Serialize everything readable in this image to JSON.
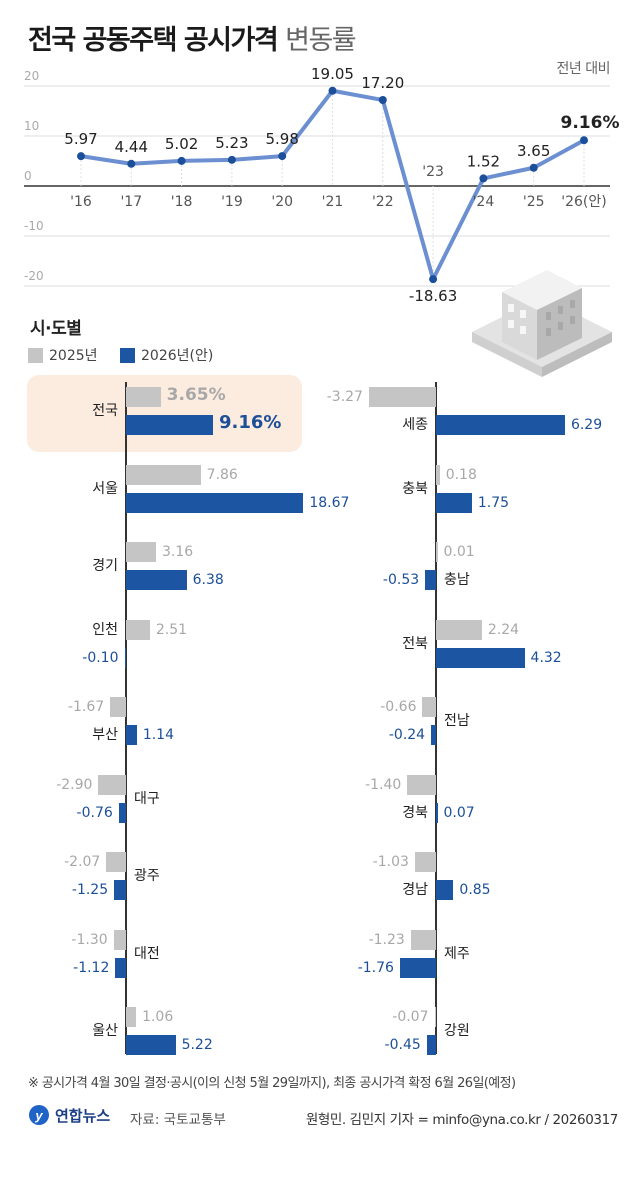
{
  "title": {
    "bold": "전국 공동주택 공시가격",
    "light": "변동률"
  },
  "chart_data": [
    {
      "type": "line",
      "unit_label": "전년 대비",
      "categories": [
        "'16",
        "'17",
        "'18",
        "'19",
        "'20",
        "'21",
        "'22",
        "'23",
        "'24",
        "'25",
        "'26(안)"
      ],
      "values": [
        5.97,
        4.44,
        5.02,
        5.23,
        5.98,
        19.05,
        17.2,
        -18.63,
        1.52,
        3.65,
        9.16
      ],
      "value_labels": [
        "5.97",
        "4.44",
        "5.02",
        "5.23",
        "5.98",
        "19.05",
        "17.20",
        "-18.63",
        "1.52",
        "3.65",
        "9.16%"
      ],
      "ylim": [
        -20,
        20
      ],
      "yticks": [
        "20",
        "10",
        "0",
        "-10",
        "-20"
      ],
      "grid": true,
      "colors": {
        "line": "#6b8fd1",
        "point": "#1b4f9a"
      }
    },
    {
      "type": "bar",
      "title": "시·도별",
      "orientation": "horizontal",
      "legend": [
        "2025년",
        "2026년(안)"
      ],
      "colors": {
        "2025": "#c5c5c5",
        "2026": "#1c56a3",
        "highlight": "#fcece0"
      },
      "panels": [
        {
          "categories": [
            "전국",
            "서울",
            "경기",
            "인천",
            "부산",
            "대구",
            "광주",
            "대전",
            "울산"
          ],
          "series": [
            {
              "name": "2025년",
              "values": [
                3.65,
                7.86,
                3.16,
                2.51,
                -1.67,
                -2.9,
                -2.07,
                -1.3,
                1.06
              ],
              "labels": [
                "3.65%",
                "7.86",
                "3.16",
                "2.51",
                "-1.67",
                "-2.90",
                "-2.07",
                "-1.30",
                "1.06"
              ]
            },
            {
              "name": "2026년(안)",
              "values": [
                9.16,
                18.67,
                6.38,
                -0.1,
                1.14,
                -0.76,
                -1.25,
                -1.12,
                5.22
              ],
              "labels": [
                "9.16%",
                "18.67",
                "6.38",
                "-0.10",
                "1.14",
                "-0.76",
                "-1.25",
                "-1.12",
                "5.22"
              ]
            }
          ]
        },
        {
          "categories": [
            "세종",
            "충북",
            "충남",
            "전북",
            "전남",
            "경북",
            "경남",
            "제주",
            "강원"
          ],
          "series": [
            {
              "name": "2025년",
              "values": [
                -3.27,
                0.18,
                0.01,
                2.24,
                -0.66,
                -1.4,
                -1.03,
                -1.23,
                -0.07
              ],
              "labels": [
                "-3.27",
                "0.18",
                "0.01",
                "2.24",
                "-0.66",
                "-1.40",
                "-1.03",
                "-1.23",
                "-0.07"
              ]
            },
            {
              "name": "2026년(안)",
              "values": [
                6.29,
                1.75,
                -0.53,
                4.32,
                -0.24,
                0.07,
                0.85,
                -1.76,
                -0.45
              ],
              "labels": [
                "6.29",
                "1.75",
                "-0.53",
                "4.32",
                "-0.24",
                "0.07",
                "0.85",
                "-1.76",
                "-0.45"
              ]
            }
          ]
        }
      ]
    }
  ],
  "footer": {
    "note": "※ 공시가격 4월 30일 결정·공시(이의 신청 5월 29일까지), 최종 공시가격 확정 6월 26일(예정)",
    "logo": "연합뉴스",
    "source": "자료: 국토교통부",
    "credit": "원형민. 김민지 기자 = minfo@yna.co.kr / 20260317"
  }
}
